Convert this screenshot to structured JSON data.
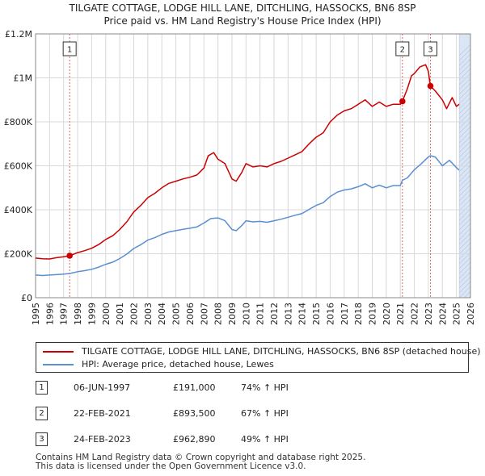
{
  "chart_data": {
    "type": "line",
    "title": "TILGATE COTTAGE, LODGE HILL LANE, DITCHLING, HASSOCKS, BN6 8SP",
    "subtitle": "Price paid vs. HM Land Registry's House Price Index (HPI)",
    "xlim": [
      1995,
      2026
    ],
    "ylim": [
      0,
      1200000
    ],
    "x_ticks": [
      "1995",
      "1996",
      "1997",
      "1998",
      "1999",
      "2000",
      "2001",
      "2002",
      "2003",
      "2004",
      "2005",
      "2006",
      "2007",
      "2008",
      "2009",
      "2010",
      "2011",
      "2012",
      "2013",
      "2014",
      "2015",
      "2016",
      "2017",
      "2018",
      "2019",
      "2020",
      "2021",
      "2022",
      "2023",
      "2024",
      "2025",
      "2026"
    ],
    "y_ticks": [
      {
        "value": 0,
        "label": "£0"
      },
      {
        "value": 200000,
        "label": "£200K"
      },
      {
        "value": 400000,
        "label": "£400K"
      },
      {
        "value": 600000,
        "label": "£600K"
      },
      {
        "value": 800000,
        "label": "£800K"
      },
      {
        "value": 1000000,
        "label": "£1M"
      },
      {
        "value": 1200000,
        "label": "£1.2M"
      }
    ],
    "grid": true,
    "colors": {
      "property": "#cc0000",
      "hpi": "#5b8fd0",
      "marker_line": "#e06666",
      "grid": "#d8d8d8",
      "shade": "#dbe6f5"
    },
    "series": [
      {
        "name": "TILGATE COTTAGE, LODGE HILL LANE, DITCHLING, HASSOCKS, BN6 8SP (detached house)",
        "x": [
          1995.0,
          1995.5,
          1996.0,
          1996.5,
          1997.0,
          1997.43,
          1998.0,
          1998.5,
          1999.0,
          1999.5,
          2000.0,
          2000.5,
          2001.0,
          2001.5,
          2002.0,
          2002.5,
          2003.0,
          2003.5,
          2004.0,
          2004.5,
          2005.0,
          2005.5,
          2006.0,
          2006.5,
          2007.0,
          2007.3,
          2007.7,
          2008.0,
          2008.5,
          2009.0,
          2009.3,
          2009.7,
          2010.0,
          2010.5,
          2011.0,
          2011.5,
          2012.0,
          2012.5,
          2013.0,
          2013.5,
          2014.0,
          2014.5,
          2015.0,
          2015.5,
          2016.0,
          2016.5,
          2017.0,
          2017.5,
          2018.0,
          2018.5,
          2019.0,
          2019.5,
          2020.0,
          2020.5,
          2021.0,
          2021.15,
          2021.5,
          2021.8,
          2022.0,
          2022.4,
          2022.8,
          2023.0,
          2023.15,
          2023.5,
          2024.0,
          2024.3,
          2024.7,
          2025.0,
          2025.2
        ],
        "values": [
          180000,
          177000,
          176000,
          182000,
          186000,
          191000,
          205000,
          214000,
          225000,
          242000,
          265000,
          282000,
          310000,
          345000,
          390000,
          420000,
          455000,
          475000,
          500000,
          520000,
          530000,
          540000,
          548000,
          558000,
          590000,
          645000,
          660000,
          630000,
          610000,
          540000,
          530000,
          570000,
          610000,
          595000,
          600000,
          595000,
          610000,
          620000,
          635000,
          650000,
          665000,
          700000,
          730000,
          750000,
          800000,
          830000,
          850000,
          860000,
          880000,
          900000,
          870000,
          890000,
          870000,
          880000,
          880000,
          893500,
          950000,
          1010000,
          1020000,
          1050000,
          1060000,
          1030000,
          962890,
          940000,
          900000,
          860000,
          910000,
          870000,
          880000
        ]
      },
      {
        "name": "HPI: Average price, detached house, Lewes",
        "x": [
          1995.0,
          1995.5,
          1996.0,
          1996.5,
          1997.0,
          1997.43,
          1998.0,
          1998.5,
          1999.0,
          1999.5,
          2000.0,
          2000.5,
          2001.0,
          2001.5,
          2002.0,
          2002.5,
          2003.0,
          2003.5,
          2004.0,
          2004.5,
          2005.0,
          2005.5,
          2006.0,
          2006.5,
          2007.0,
          2007.5,
          2008.0,
          2008.5,
          2009.0,
          2009.3,
          2009.7,
          2010.0,
          2010.5,
          2011.0,
          2011.5,
          2012.0,
          2012.5,
          2013.0,
          2013.5,
          2014.0,
          2014.5,
          2015.0,
          2015.5,
          2016.0,
          2016.5,
          2017.0,
          2017.5,
          2018.0,
          2018.5,
          2019.0,
          2019.5,
          2020.0,
          2020.5,
          2021.0,
          2021.15,
          2021.5,
          2022.0,
          2022.5,
          2023.0,
          2023.15,
          2023.5,
          2024.0,
          2024.5,
          2025.0,
          2025.2
        ],
        "values": [
          103000,
          101000,
          103000,
          105000,
          107000,
          110000,
          118000,
          123000,
          129000,
          139000,
          152000,
          162000,
          178000,
          198000,
          224000,
          241000,
          262000,
          273000,
          288000,
          299000,
          305000,
          311000,
          316000,
          322000,
          340000,
          360000,
          363000,
          350000,
          310000,
          305000,
          328000,
          350000,
          345000,
          347000,
          343000,
          350000,
          357000,
          366000,
          375000,
          383000,
          402000,
          420000,
          432000,
          460000,
          480000,
          490000,
          495000,
          505000,
          518000,
          500000,
          512000,
          500000,
          510000,
          510000,
          534000,
          545000,
          582000,
          610000,
          640000,
          646000,
          640000,
          600000,
          625000,
          592000,
          580000
        ]
      }
    ],
    "sales": [
      {
        "num": "1",
        "x": 1997.43,
        "value": 191000
      },
      {
        "num": "2",
        "x": 2021.15,
        "value": 893500
      },
      {
        "num": "3",
        "x": 2023.15,
        "value": 962890
      }
    ]
  },
  "legend": {
    "property_label": "TILGATE COTTAGE, LODGE HILL LANE, DITCHLING, HASSOCKS, BN6 8SP (detached house)",
    "hpi_label": "HPI: Average price, detached house, Lewes"
  },
  "sales_table": [
    {
      "num": "1",
      "date": "06-JUN-1997",
      "price": "£191,000",
      "hpi": "74% ↑ HPI"
    },
    {
      "num": "2",
      "date": "22-FEB-2021",
      "price": "£893,500",
      "hpi": "67% ↑ HPI"
    },
    {
      "num": "3",
      "date": "24-FEB-2023",
      "price": "£962,890",
      "hpi": "49% ↑ HPI"
    }
  ],
  "footer": {
    "line1": "Contains HM Land Registry data © Crown copyright and database right 2025.",
    "line2": "This data is licensed under the Open Government Licence v3.0."
  }
}
